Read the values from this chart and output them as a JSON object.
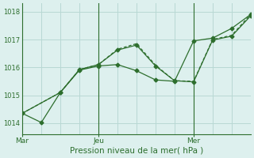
{
  "background_color": "#ddf0ee",
  "grid_color": "#b8d8d4",
  "line_color": "#2d6e2d",
  "xlabel": "Pression niveau de la mer( hPa )",
  "ylim": [
    1013.6,
    1018.3
  ],
  "yticks": [
    1014,
    1015,
    1016,
    1017,
    1018
  ],
  "xlim": [
    0,
    12
  ],
  "xtick_positions": [
    0,
    4,
    9
  ],
  "xtick_labels": [
    "Mar",
    "Jeu",
    "Mer"
  ],
  "vline_positions": [
    4,
    9
  ],
  "num_grid_x": 12,
  "series1_x": [
    0,
    1,
    2,
    3,
    4,
    5,
    6,
    7,
    8,
    9,
    10,
    11,
    12
  ],
  "series1_y": [
    1014.35,
    1014.02,
    1015.1,
    1015.9,
    1016.05,
    1016.1,
    1015.88,
    1015.55,
    1015.5,
    1016.95,
    1017.05,
    1017.4,
    1017.9
  ],
  "series2_x": [
    0,
    2,
    3,
    4,
    5,
    6,
    7,
    8,
    9,
    10,
    11,
    12
  ],
  "series2_y": [
    1014.35,
    1015.1,
    1015.92,
    1016.1,
    1016.62,
    1016.8,
    1016.05,
    1015.52,
    1015.48,
    1016.98,
    1017.12,
    1017.85
  ],
  "series3_x": [
    0,
    2,
    3,
    4,
    5,
    6,
    7,
    8,
    9,
    10,
    11,
    12
  ],
  "series3_y": [
    1014.35,
    1015.1,
    1015.92,
    1016.1,
    1016.65,
    1016.85,
    1016.08,
    1015.52,
    1015.5,
    1017.0,
    1017.15,
    1017.9
  ]
}
